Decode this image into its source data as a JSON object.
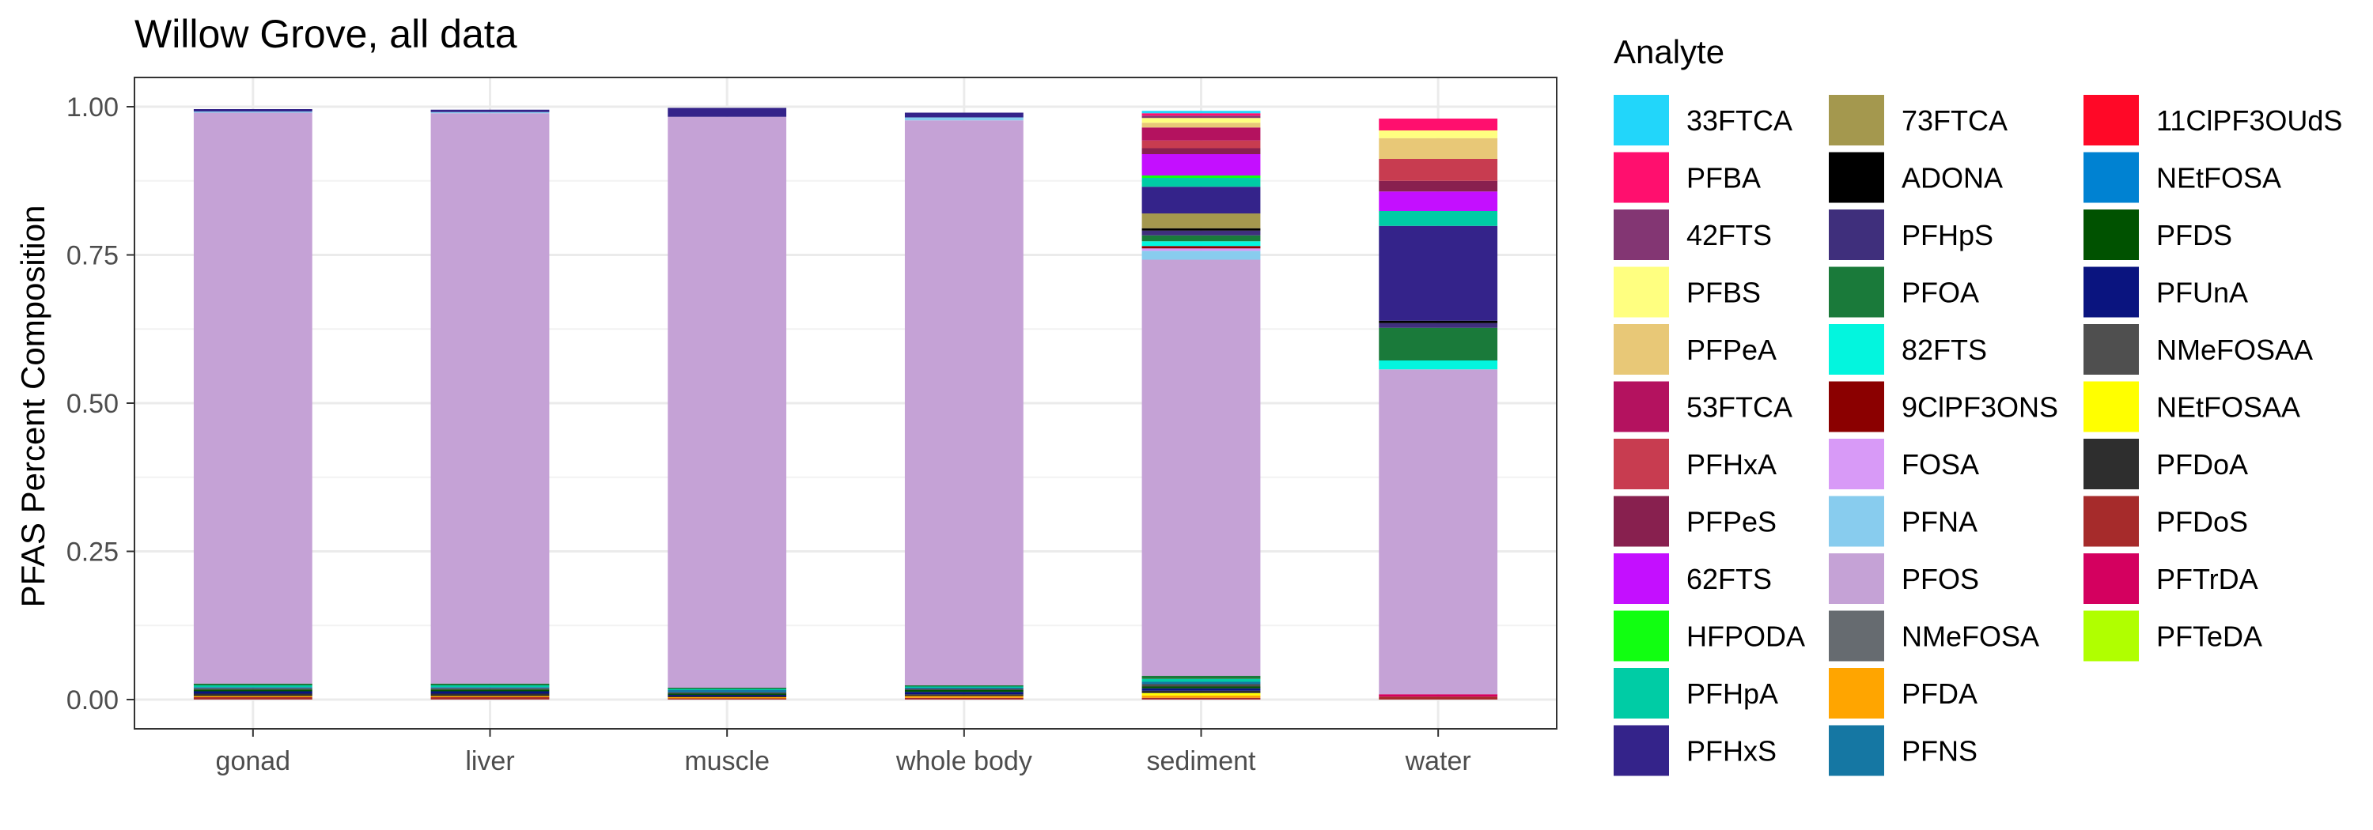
{
  "chart_data": {
    "type": "bar",
    "stacked": true,
    "title": "Willow Grove, all data",
    "xlabel": "",
    "ylabel": "PFAS Percent Composition",
    "ylim": [
      0,
      1
    ],
    "yticks": [
      "0.00",
      "0.25",
      "0.50",
      "0.75",
      "1.00"
    ],
    "grid": true,
    "legend_title": "Analyte",
    "legend_position": "right",
    "categories": [
      "gonad",
      "liver",
      "muscle",
      "whole body",
      "sediment",
      "water"
    ],
    "analytes": [
      {
        "name": "33FTCA",
        "color": "#22D6FA"
      },
      {
        "name": "PFBA",
        "color": "#FF0F6E"
      },
      {
        "name": "42FTS",
        "color": "#833673"
      },
      {
        "name": "PFBS",
        "color": "#FFFF80"
      },
      {
        "name": "PFPeA",
        "color": "#E8C877"
      },
      {
        "name": "53FTCA",
        "color": "#B4125F"
      },
      {
        "name": "PFHxA",
        "color": "#C83C50"
      },
      {
        "name": "PFPeS",
        "color": "#88204F"
      },
      {
        "name": "62FTS",
        "color": "#C40FFF"
      },
      {
        "name": "HFPODA",
        "color": "#11FF11"
      },
      {
        "name": "PFHpA",
        "color": "#00CCA5"
      },
      {
        "name": "PFHxS",
        "color": "#34238A"
      },
      {
        "name": "73FTCA",
        "color": "#A4984E"
      },
      {
        "name": "ADONA",
        "color": "#000000"
      },
      {
        "name": "PFHpS",
        "color": "#3F2F7C"
      },
      {
        "name": "PFOA",
        "color": "#1A7A3A"
      },
      {
        "name": "82FTS",
        "color": "#03F5DE"
      },
      {
        "name": "9ClPF3ONS",
        "color": "#8B0000"
      },
      {
        "name": "FOSA",
        "color": "#D89AF7"
      },
      {
        "name": "PFNA",
        "color": "#88CCEE"
      },
      {
        "name": "PFOS",
        "color": "#C5A2D6"
      },
      {
        "name": "NMeFOSA",
        "color": "#666B70"
      },
      {
        "name": "PFDA",
        "color": "#FFA500"
      },
      {
        "name": "PFNS",
        "color": "#1577A3"
      },
      {
        "name": "11ClPF3OUdS",
        "color": "#FF0827"
      },
      {
        "name": "NEtFOSA",
        "color": "#0082D2"
      },
      {
        "name": "PFDS",
        "color": "#005200"
      },
      {
        "name": "PFUnA",
        "color": "#0A147F"
      },
      {
        "name": "NMeFOSAA",
        "color": "#4F4F4F"
      },
      {
        "name": "NEtFOSAA",
        "color": "#FFFF00"
      },
      {
        "name": "PFDoA",
        "color": "#2E2E2E"
      },
      {
        "name": "PFDoS",
        "color": "#A62B2B"
      },
      {
        "name": "PFTrDA",
        "color": "#D4005F"
      },
      {
        "name": "PFTeDA",
        "color": "#B0FF00"
      }
    ],
    "series": [
      {
        "name": "PFDoS",
        "values": [
          0.004,
          0.004,
          0.002,
          0.003,
          0.003,
          0.005
        ]
      },
      {
        "name": "PFTrDA",
        "values": [
          0.0,
          0.0,
          0.0,
          0.0,
          0.0,
          0.004
        ]
      },
      {
        "name": "PFDA",
        "values": [
          0.002,
          0.002,
          0.002,
          0.003,
          0.004,
          0.0
        ]
      },
      {
        "name": "NEtFOSAA",
        "values": [
          0.0,
          0.0,
          0.0,
          0.0,
          0.004,
          0.0
        ]
      },
      {
        "name": "PFDoA",
        "values": [
          0.004,
          0.004,
          0.002,
          0.003,
          0.004,
          0.0
        ]
      },
      {
        "name": "PFUnA",
        "values": [
          0.004,
          0.004,
          0.002,
          0.004,
          0.004,
          0.0
        ]
      },
      {
        "name": "PFDS",
        "values": [
          0.003,
          0.003,
          0.002,
          0.003,
          0.003,
          0.0
        ]
      },
      {
        "name": "NMeFOSAA",
        "values": [
          0.002,
          0.002,
          0.002,
          0.002,
          0.004,
          0.0
        ]
      },
      {
        "name": "PFNS",
        "values": [
          0.002,
          0.002,
          0.004,
          0.002,
          0.004,
          0.0
        ]
      },
      {
        "name": "PFHpA",
        "values": [
          0.003,
          0.003,
          0.002,
          0.002,
          0.005,
          0.0
        ]
      },
      {
        "name": "PFOA",
        "values": [
          0.003,
          0.003,
          0.002,
          0.002,
          0.005,
          0.0
        ]
      },
      {
        "name": "PFOS",
        "values": [
          0.963,
          0.962,
          0.963,
          0.953,
          0.702,
          0.548
        ]
      },
      {
        "name": "PFNA",
        "values": [
          0.002,
          0.002,
          0.0,
          0.005,
          0.015,
          0.0
        ]
      },
      {
        "name": "FOSA",
        "values": [
          0.0,
          0.0,
          0.0,
          0.0,
          0.004,
          0.0
        ]
      },
      {
        "name": "9ClPF3ONS",
        "values": [
          0.0,
          0.0,
          0.0,
          0.0,
          0.004,
          0.0
        ]
      },
      {
        "name": "82FTS",
        "values": [
          0.0,
          0.0,
          0.0,
          0.0,
          0.008,
          0.015
        ]
      },
      {
        "name": "PFOA",
        "values": [
          0.0,
          0.0,
          0.0,
          0.0,
          0.01,
          0.055
        ]
      },
      {
        "name": "PFHpS",
        "values": [
          0.0,
          0.0,
          0.0,
          0.0,
          0.008,
          0.008
        ]
      },
      {
        "name": "ADONA",
        "values": [
          0.0,
          0.0,
          0.0,
          0.0,
          0.004,
          0.004
        ]
      },
      {
        "name": "73FTCA",
        "values": [
          0.0,
          0.0,
          0.0,
          0.0,
          0.025,
          0.0
        ]
      },
      {
        "name": "PFHxS",
        "values": [
          0.004,
          0.004,
          0.015,
          0.008,
          0.045,
          0.16
        ]
      },
      {
        "name": "PFHpA",
        "values": [
          0.0,
          0.0,
          0.0,
          0.0,
          0.015,
          0.025
        ]
      },
      {
        "name": "HFPODA",
        "values": [
          0.0,
          0.0,
          0.0,
          0.0,
          0.004,
          0.0
        ]
      },
      {
        "name": "62FTS",
        "values": [
          0.0,
          0.0,
          0.0,
          0.0,
          0.036,
          0.033
        ]
      },
      {
        "name": "PFPeS",
        "values": [
          0.0,
          0.0,
          0.0,
          0.0,
          0.01,
          0.018
        ]
      },
      {
        "name": "PFHxA",
        "values": [
          0.0,
          0.0,
          0.0,
          0.0,
          0.013,
          0.037
        ]
      },
      {
        "name": "53FTCA",
        "values": [
          0.0,
          0.0,
          0.0,
          0.0,
          0.022,
          0.0
        ]
      },
      {
        "name": "PFPeA",
        "values": [
          0.0,
          0.0,
          0.0,
          0.0,
          0.008,
          0.035
        ]
      },
      {
        "name": "PFBS",
        "values": [
          0.0,
          0.0,
          0.0,
          0.0,
          0.008,
          0.013
        ]
      },
      {
        "name": "42FTS",
        "values": [
          0.0,
          0.0,
          0.0,
          0.0,
          0.004,
          0.0
        ]
      },
      {
        "name": "PFBA",
        "values": [
          0.0,
          0.0,
          0.0,
          0.0,
          0.004,
          0.02
        ]
      },
      {
        "name": "33FTCA",
        "values": [
          0.0,
          0.0,
          0.0,
          0.0,
          0.004,
          0.0
        ]
      }
    ]
  }
}
